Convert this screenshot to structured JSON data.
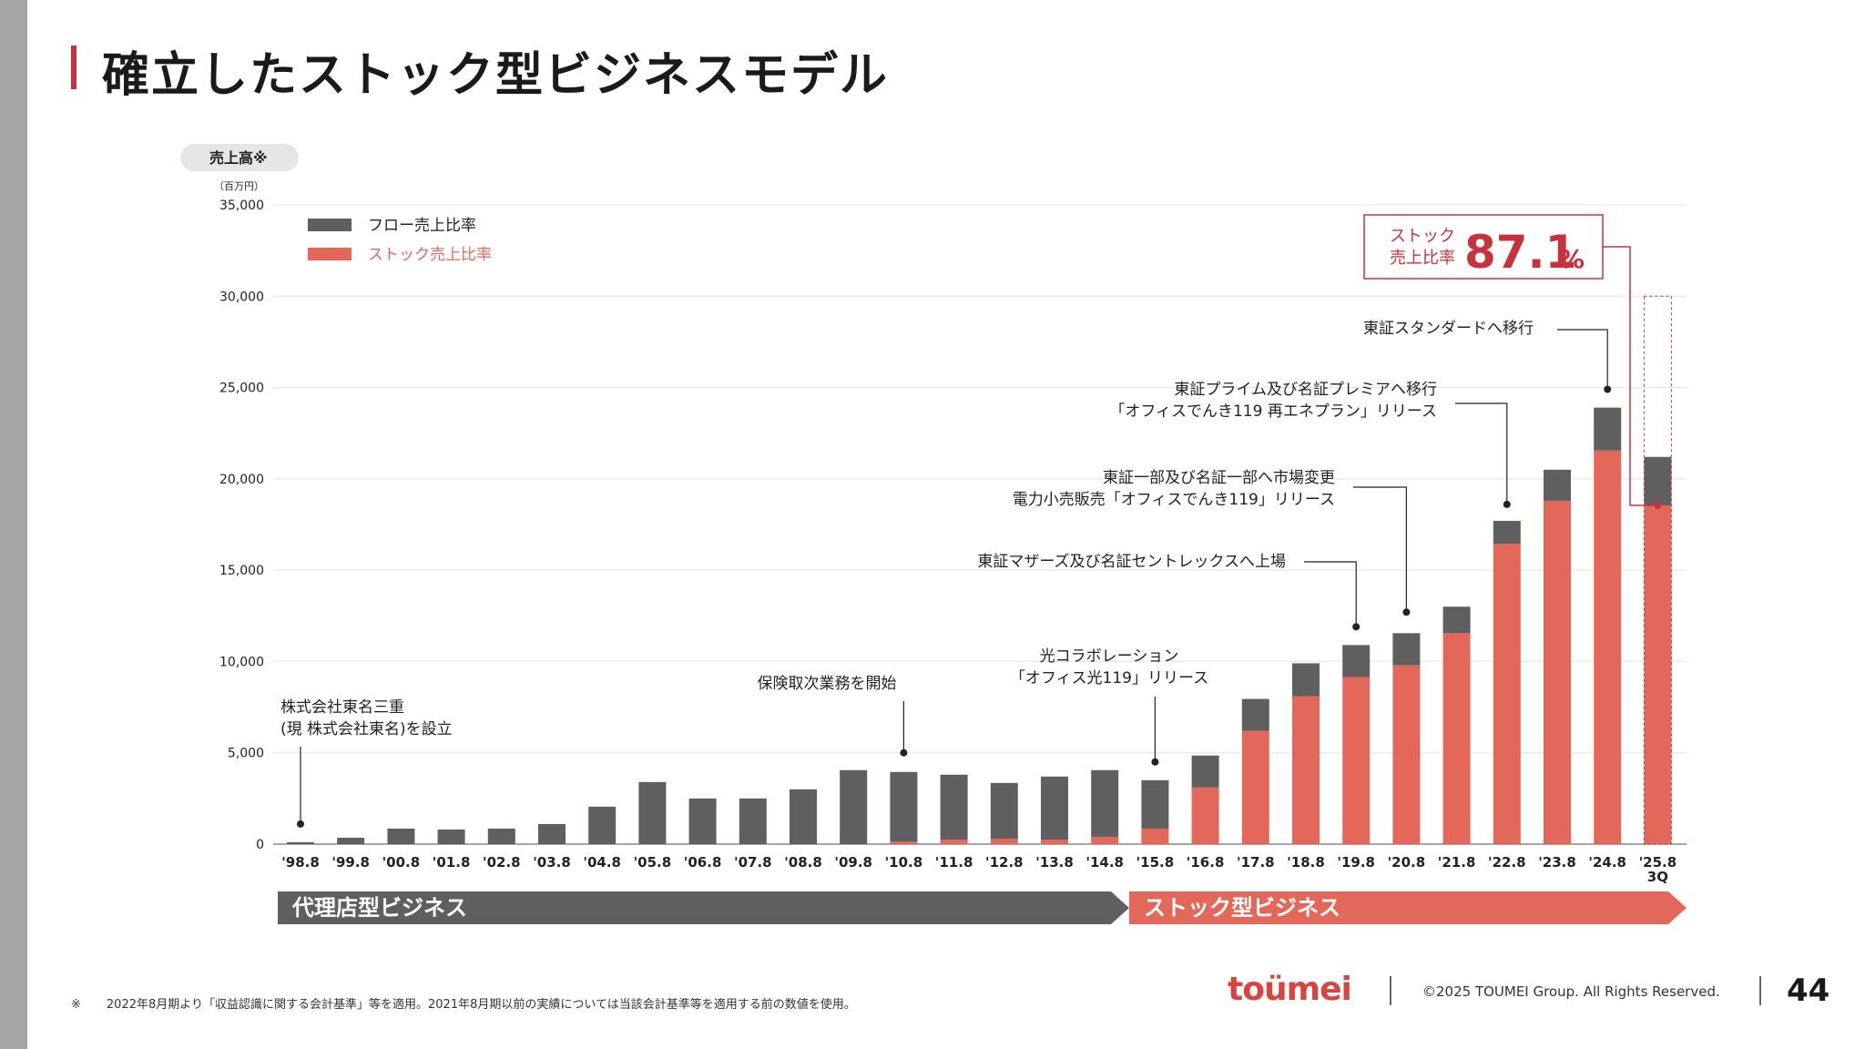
{
  "page": {
    "title": "確立したストック型ビジネスモデル",
    "footnote_mark": "※",
    "footnote": "2022年8月期より「収益認識に関する会計基準」等を適用。2021年8月期以前の実績については当該会計基準等を適用する前の数値を使用。",
    "logo": "toümei",
    "copyright": "©2025 TOUMEI Group. All Rights Reserved.",
    "page_number": "44"
  },
  "colors": {
    "accent": "#c8323c",
    "flow": "#5f5f5f",
    "stock": "#e4685a",
    "phase_agency": "#5f5f5f",
    "phase_stock": "#e4685a"
  },
  "chart_data": {
    "type": "bar",
    "stacked": true,
    "ylabel": "売上高※",
    "yunit": "（百万円）",
    "ylim": [
      0,
      35000
    ],
    "yticks": [
      0,
      5000,
      10000,
      15000,
      20000,
      25000,
      30000,
      35000
    ],
    "ytick_labels": [
      "0",
      "5,000",
      "10,000",
      "15,000",
      "20,000",
      "25,000",
      "30,000",
      "35,000"
    ],
    "grid": true,
    "legend_position": "top-left",
    "categories": [
      "'98.8",
      "'99.8",
      "'00.8",
      "'01.8",
      "'02.8",
      "'03.8",
      "'04.8",
      "'05.8",
      "'06.8",
      "'07.8",
      "'08.8",
      "'09.8",
      "'10.8",
      "'11.8",
      "'12.8",
      "'13.8",
      "'14.8",
      "'15.8",
      "'16.8",
      "'17.8",
      "'18.8",
      "'19.8",
      "'20.8",
      "'21.8",
      "'22.8",
      "'23.8",
      "'24.8",
      "'25.8\n3Q"
    ],
    "series": [
      {
        "name": "ストック売上比率",
        "color": "#e4685a",
        "values": [
          0,
          0,
          0,
          0,
          0,
          0,
          0,
          0,
          0,
          0,
          0,
          0,
          150,
          250,
          300,
          250,
          400,
          850,
          3100,
          6200,
          8100,
          9150,
          9800,
          11550,
          16450,
          18800,
          21550,
          18550
        ]
      },
      {
        "name": "フロー売上比率",
        "color": "#5f5f5f",
        "values": [
          100,
          350,
          850,
          800,
          850,
          1100,
          2050,
          3400,
          2500,
          2500,
          3000,
          4050,
          3800,
          3550,
          3050,
          3450,
          3650,
          2650,
          1750,
          1750,
          1800,
          1750,
          1750,
          1450,
          1250,
          1700,
          2350,
          2650
        ]
      }
    ],
    "annotations": [
      {
        "category": "'98.8",
        "y": 1100,
        "lines": [
          "株式会社東名三重",
          "(現 株式会社東名)を設立"
        ]
      },
      {
        "category": "'10.8",
        "y": 5000,
        "lines": [
          "保険取次業務を開始"
        ]
      },
      {
        "category": "'15.8",
        "y": 4500,
        "lines": [
          "光コラボレーション",
          "「オフィス光119」リリース"
        ]
      },
      {
        "category": "'19.8",
        "y": 11900,
        "lines": [
          "東証マザーズ及び名証セントレックスへ上場"
        ]
      },
      {
        "category": "'20.8",
        "y": 12700,
        "lines": [
          "東証一部及び名証一部へ市場変更",
          "電力小売販売「オフィスでんき119」リリース"
        ]
      },
      {
        "category": "'22.8",
        "y": 18600,
        "lines": [
          "東証プライム及び名証プレミアへ移行",
          "「オフィスでんき119 再エネプラン」リリース"
        ]
      },
      {
        "category": "'24.8",
        "y": 24900,
        "lines": [
          "東証スタンダードへ移行"
        ]
      }
    ],
    "callout": {
      "label_lines": [
        "ストック",
        "売上比率"
      ],
      "value": "87.1",
      "unit": "%"
    },
    "phases": [
      {
        "label": "代理店型ビジネス",
        "from": "'98.8",
        "to": "'14.8"
      },
      {
        "label": "ストック型ビジネス",
        "from": "'15.8",
        "to": "'25.8\n3Q"
      }
    ]
  }
}
